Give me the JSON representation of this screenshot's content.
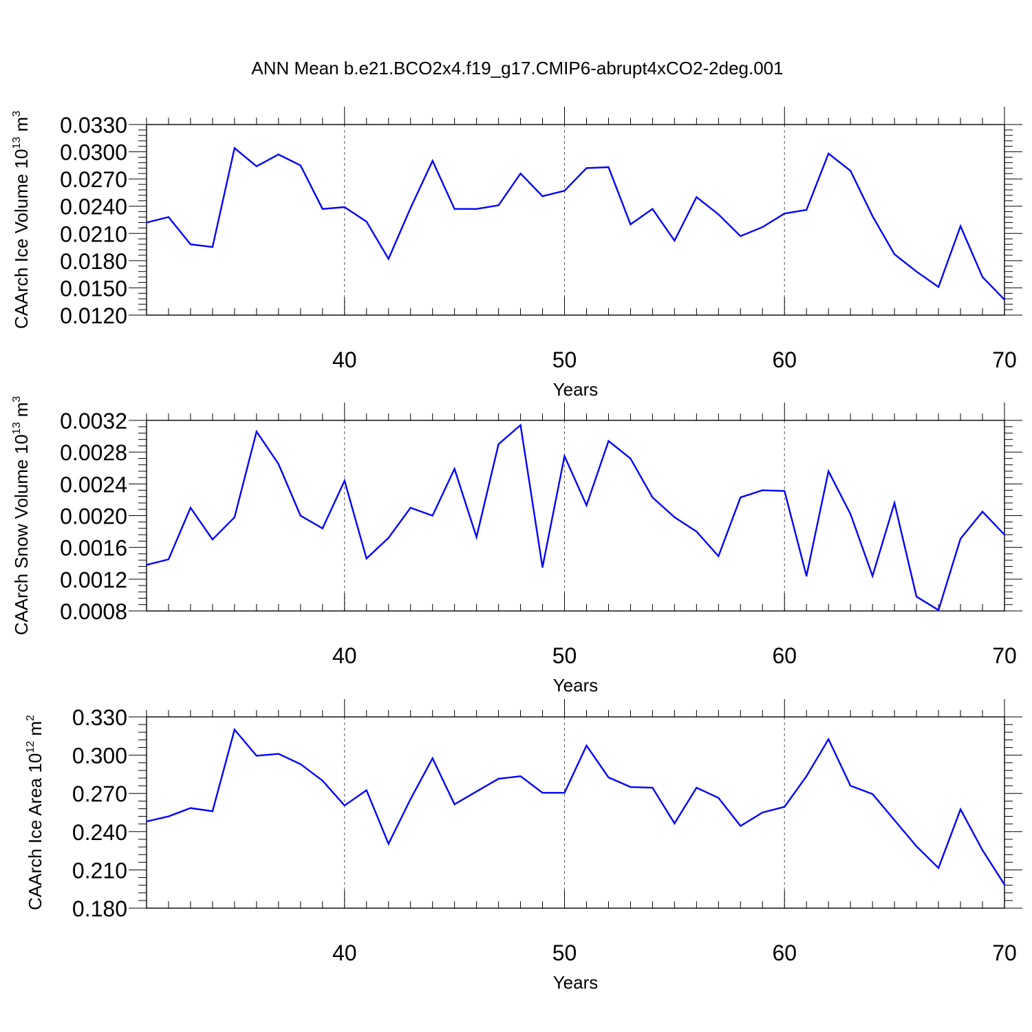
{
  "title": "ANN Mean b.e21.BCO2x4.f19_g17.CMIP6-abrupt4xCO2-2deg.001",
  "line_color": "#0000ff",
  "chart_data": [
    {
      "type": "line",
      "ylabel": "CAArch Ice Volume 10",
      "ylabel_exp": "13",
      "ylabel_unit": " m",
      "ylabel_unit_exp": "3",
      "xlabel": "Years",
      "xlim": [
        31,
        70
      ],
      "ylim": [
        0.012,
        0.033
      ],
      "yticks": [
        "0.0120",
        "0.0150",
        "0.0180",
        "0.0210",
        "0.0240",
        "0.0270",
        "0.0300",
        "0.0330"
      ],
      "xticks": [
        "40",
        "50",
        "60",
        "70"
      ],
      "grid": "dashed vertical at major x ticks",
      "x": [
        31,
        32,
        33,
        34,
        35,
        36,
        37,
        38,
        39,
        40,
        41,
        42,
        43,
        44,
        45,
        46,
        47,
        48,
        49,
        50,
        51,
        52,
        53,
        54,
        55,
        56,
        57,
        58,
        59,
        60,
        61,
        62,
        63,
        64,
        65,
        66,
        67,
        68,
        69,
        70
      ],
      "values": [
        0.0222,
        0.0228,
        0.0198,
        0.0195,
        0.0304,
        0.0284,
        0.0297,
        0.0285,
        0.0237,
        0.0239,
        0.0223,
        0.0182,
        0.0238,
        0.029,
        0.0237,
        0.0237,
        0.0241,
        0.0276,
        0.0251,
        0.0257,
        0.0282,
        0.0283,
        0.022,
        0.0237,
        0.0202,
        0.025,
        0.0231,
        0.0207,
        0.0217,
        0.0232,
        0.0236,
        0.0298,
        0.0279,
        0.0229,
        0.0187,
        0.0168,
        0.0151,
        0.0218,
        0.0162,
        0.0137
      ]
    },
    {
      "type": "line",
      "ylabel": "CAArch Snow Volume 10",
      "ylabel_exp": "13",
      "ylabel_unit": " m",
      "ylabel_unit_exp": "3",
      "xlabel": "Years",
      "xlim": [
        31,
        70
      ],
      "ylim": [
        0.0008,
        0.0032
      ],
      "yticks": [
        "0.0008",
        "0.0012",
        "0.0016",
        "0.0020",
        "0.0024",
        "0.0028",
        "0.0032"
      ],
      "xticks": [
        "40",
        "50",
        "60",
        "70"
      ],
      "grid": "dashed vertical at major x ticks",
      "x": [
        31,
        32,
        33,
        34,
        35,
        36,
        37,
        38,
        39,
        40,
        41,
        42,
        43,
        44,
        45,
        46,
        47,
        48,
        49,
        50,
        51,
        52,
        53,
        54,
        55,
        56,
        57,
        58,
        59,
        60,
        61,
        62,
        63,
        64,
        65,
        66,
        67,
        68,
        69,
        70
      ],
      "values": [
        0.00138,
        0.00145,
        0.0021,
        0.0017,
        0.00198,
        0.00306,
        0.00265,
        0.002,
        0.00184,
        0.00244,
        0.00146,
        0.00172,
        0.0021,
        0.002,
        0.00259,
        0.00173,
        0.0029,
        0.00314,
        0.00135,
        0.00275,
        0.00213,
        0.00294,
        0.00272,
        0.00223,
        0.00198,
        0.0018,
        0.00149,
        0.00223,
        0.00232,
        0.00231,
        0.00124,
        0.00256,
        0.00202,
        0.00124,
        0.00216,
        0.00098,
        0.00081,
        0.00171,
        0.00205,
        0.00176
      ]
    },
    {
      "type": "line",
      "ylabel": "CAArch Ice Area 10",
      "ylabel_exp": "12",
      "ylabel_unit": " m",
      "ylabel_unit_exp": "2",
      "xlabel": "Years",
      "xlim": [
        31,
        70
      ],
      "ylim": [
        0.18,
        0.33
      ],
      "yticks": [
        "0.180",
        "0.210",
        "0.240",
        "0.270",
        "0.300",
        "0.330"
      ],
      "xticks": [
        "40",
        "50",
        "60",
        "70"
      ],
      "grid": "dashed vertical at major x ticks",
      "x": [
        31,
        32,
        33,
        34,
        35,
        36,
        37,
        38,
        39,
        40,
        41,
        42,
        43,
        44,
        45,
        46,
        47,
        48,
        49,
        50,
        51,
        52,
        53,
        54,
        55,
        56,
        57,
        58,
        59,
        60,
        61,
        62,
        63,
        64,
        65,
        66,
        67,
        68,
        69,
        70
      ],
      "values": [
        0.248,
        0.252,
        0.2585,
        0.256,
        0.32,
        0.2995,
        0.301,
        0.293,
        0.28,
        0.2605,
        0.2725,
        0.2305,
        0.2655,
        0.2975,
        0.2615,
        0.2715,
        0.2815,
        0.2835,
        0.2705,
        0.2705,
        0.3075,
        0.2825,
        0.275,
        0.2745,
        0.2465,
        0.2745,
        0.2665,
        0.2445,
        0.255,
        0.2595,
        0.2835,
        0.3125,
        0.276,
        0.2695,
        0.249,
        0.2285,
        0.2115,
        0.2575,
        0.2255,
        0.1985
      ]
    }
  ]
}
